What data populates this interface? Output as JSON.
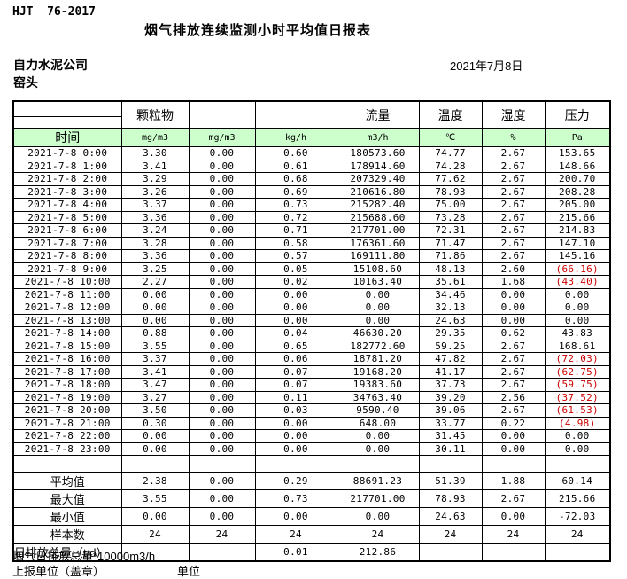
{
  "meta": {
    "standard": "HJT  76-2017",
    "title": "烟气排放连续监测小时平均值日报表",
    "company": "自力水泥公司",
    "station": "窑头",
    "date": "2021年7月8日"
  },
  "colors": {
    "header_green": "#ccffcc",
    "negative_red": "#cc0000",
    "border_black": "#000000"
  },
  "table": {
    "group_headers": [
      "",
      "颗粒物",
      "",
      "",
      "流量",
      "温度",
      "湿度",
      "压力"
    ],
    "unit_row": [
      "时间",
      "mg/m3",
      "mg/m3",
      "kg/h",
      "m3/h",
      "℃",
      "%",
      "Pa"
    ],
    "rows": [
      {
        "time": "2021-7-8 0:00",
        "values": [
          "3.30",
          "0.00",
          "0.60",
          "180573.60",
          "74.77",
          "2.67",
          "153.65"
        ]
      },
      {
        "time": "2021-7-8 1:00",
        "values": [
          "3.41",
          "0.00",
          "0.61",
          "178914.60",
          "74.28",
          "2.67",
          "148.66"
        ]
      },
      {
        "time": "2021-7-8 2:00",
        "values": [
          "3.29",
          "0.00",
          "0.68",
          "207329.40",
          "77.62",
          "2.67",
          "200.70"
        ]
      },
      {
        "time": "2021-7-8 3:00",
        "values": [
          "3.26",
          "0.00",
          "0.69",
          "210616.80",
          "78.93",
          "2.67",
          "208.28"
        ]
      },
      {
        "time": "2021-7-8 4:00",
        "values": [
          "3.37",
          "0.00",
          "0.73",
          "215282.40",
          "75.00",
          "2.67",
          "205.00"
        ]
      },
      {
        "time": "2021-7-8 5:00",
        "values": [
          "3.36",
          "0.00",
          "0.72",
          "215688.60",
          "73.28",
          "2.67",
          "215.66"
        ]
      },
      {
        "time": "2021-7-8 6:00",
        "values": [
          "3.24",
          "0.00",
          "0.71",
          "217701.00",
          "72.31",
          "2.67",
          "214.83"
        ]
      },
      {
        "time": "2021-7-8 7:00",
        "values": [
          "3.28",
          "0.00",
          "0.58",
          "176361.60",
          "71.47",
          "2.67",
          "147.10"
        ]
      },
      {
        "time": "2021-7-8 8:00",
        "values": [
          "3.36",
          "0.00",
          "0.57",
          "169111.80",
          "71.86",
          "2.67",
          "145.16"
        ]
      },
      {
        "time": "2021-7-8 9:00",
        "values": [
          "3.25",
          "0.00",
          "0.05",
          "15108.60",
          "48.13",
          "2.60",
          "(66.16)"
        ]
      },
      {
        "time": "2021-7-8 10:00",
        "values": [
          "2.27",
          "0.00",
          "0.02",
          "10163.40",
          "35.61",
          "1.68",
          "(43.40)"
        ]
      },
      {
        "time": "2021-7-8 11:00",
        "values": [
          "0.00",
          "0.00",
          "0.00",
          "0.00",
          "34.46",
          "0.00",
          "0.00"
        ]
      },
      {
        "time": "2021-7-8 12:00",
        "values": [
          "0.00",
          "0.00",
          "0.00",
          "0.00",
          "32.13",
          "0.00",
          "0.00"
        ]
      },
      {
        "time": "2021-7-8 13:00",
        "values": [
          "0.00",
          "0.00",
          "0.00",
          "0.00",
          "24.63",
          "0.00",
          "0.00"
        ]
      },
      {
        "time": "2021-7-8 14:00",
        "values": [
          "0.88",
          "0.00",
          "0.04",
          "46630.20",
          "29.35",
          "0.62",
          "43.83"
        ]
      },
      {
        "time": "2021-7-8 15:00",
        "values": [
          "3.55",
          "0.00",
          "0.65",
          "182772.60",
          "59.25",
          "2.67",
          "168.61"
        ]
      },
      {
        "time": "2021-7-8 16:00",
        "values": [
          "3.37",
          "0.00",
          "0.06",
          "18781.20",
          "47.82",
          "2.67",
          "(72.03)"
        ]
      },
      {
        "time": "2021-7-8 17:00",
        "values": [
          "3.41",
          "0.00",
          "0.07",
          "19168.20",
          "41.17",
          "2.67",
          "(62.75)"
        ]
      },
      {
        "time": "2021-7-8 18:00",
        "values": [
          "3.47",
          "0.00",
          "0.07",
          "19383.60",
          "37.73",
          "2.67",
          "(59.75)"
        ]
      },
      {
        "time": "2021-7-8 19:00",
        "values": [
          "3.27",
          "0.00",
          "0.11",
          "34763.40",
          "39.20",
          "2.56",
          "(37.52)"
        ]
      },
      {
        "time": "2021-7-8 20:00",
        "values": [
          "3.50",
          "0.00",
          "0.03",
          "9590.40",
          "39.06",
          "2.67",
          "(61.53)"
        ]
      },
      {
        "time": "2021-7-8 21:00",
        "values": [
          "0.30",
          "0.00",
          "0.00",
          "648.00",
          "33.77",
          "0.22",
          "(4.98)"
        ]
      },
      {
        "time": "2021-7-8 22:00",
        "values": [
          "0.00",
          "0.00",
          "0.00",
          "0.00",
          "31.45",
          "0.00",
          "0.00"
        ]
      },
      {
        "time": "2021-7-8 23:00",
        "values": [
          "0.00",
          "0.00",
          "0.00",
          "0.00",
          "30.11",
          "0.00",
          "0.00"
        ]
      }
    ],
    "summary": [
      {
        "label": "平均值",
        "values": [
          "2.38",
          "0.00",
          "0.29",
          "88691.23",
          "51.39",
          "1.88",
          "60.14"
        ]
      },
      {
        "label": "最大值",
        "values": [
          "3.55",
          "0.00",
          "0.73",
          "217701.00",
          "78.93",
          "2.67",
          "215.66"
        ]
      },
      {
        "label": "最小值",
        "values": [
          "0.00",
          "0.00",
          "0.00",
          "0.00",
          "24.63",
          "0.00",
          "-72.03"
        ]
      },
      {
        "label": "样本数",
        "values": [
          "24",
          "24",
          "24",
          "24",
          "24",
          "24",
          "24"
        ]
      },
      {
        "label": "日排放总量（t/d）",
        "values": [
          "",
          "",
          "0.01",
          "212.86",
          "",
          "",
          ""
        ]
      }
    ]
  },
  "footer": {
    "note": "烟气日排放总量*10000m3/h",
    "report_unit_label": "上报单位（盖章）",
    "unit_label": "单位"
  }
}
